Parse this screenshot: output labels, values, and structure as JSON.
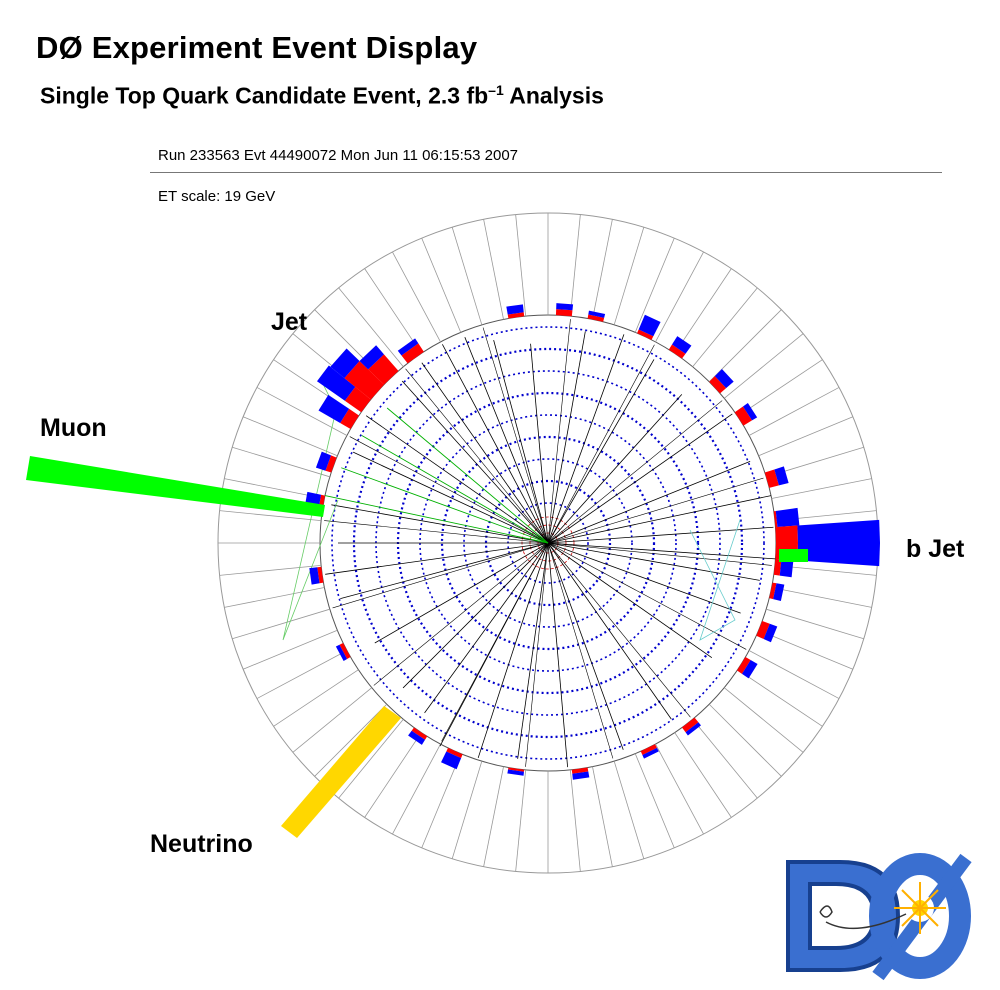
{
  "header": {
    "title": "DØ Experiment Event Display",
    "subtitle_main": "Single Top Quark Candidate Event, 2.3 fb",
    "subtitle_exp": "–1",
    "subtitle_tail": " Analysis",
    "run_info": "Run 233563 Evt 44490072 Mon Jun 11 06:15:53 2007",
    "et_scale": "ET scale: 19 GeV"
  },
  "labels": {
    "jet": "Jet",
    "muon": "Muon",
    "b_jet": "b Jet",
    "neutrino": "Neutrino"
  },
  "logo": {
    "text": "DØ"
  },
  "colors": {
    "em_energy": "#ff0000",
    "had_energy": "#0000ff",
    "muon": "#00ff00",
    "neutrino": "#ffd700",
    "hits": "#0000cc",
    "tracks": "#000000",
    "grid": "#999999"
  }
}
